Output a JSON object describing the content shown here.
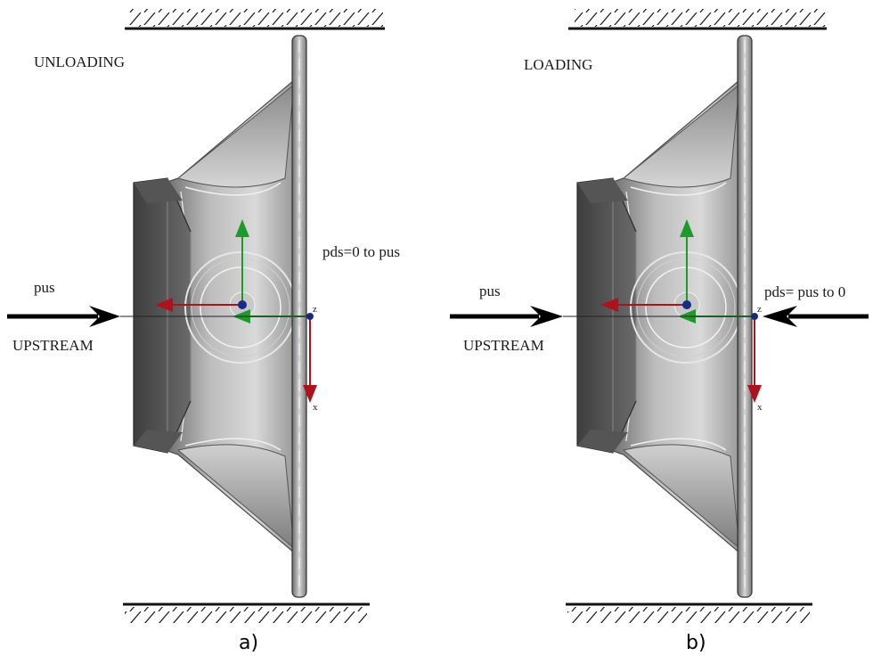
{
  "panels": [
    {
      "id": "a",
      "mode_label": "UNLOADING",
      "upstream_label": "UPSTREAM",
      "pus_label": "pus",
      "pds_label": "pds=0 to pus",
      "caption": "a)"
    },
    {
      "id": "b",
      "mode_label": "LOADING",
      "upstream_label": "UPSTREAM",
      "pus_label": "pus",
      "pds_label": "pds= pus to 0",
      "caption": "b)"
    }
  ],
  "axis_labels": {
    "z": "z",
    "x": "x"
  },
  "colors": {
    "axis_red": "#b0121b",
    "axis_green": "#1d9a2a",
    "origin_blue": "#1a2a8a"
  }
}
